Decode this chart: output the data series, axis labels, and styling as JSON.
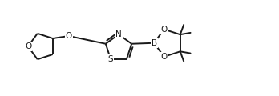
{
  "bg_color": "#ffffff",
  "line_color": "#1a1a1a",
  "line_width": 1.4,
  "font_size": 7.5,
  "atom_bg": "#ffffff",
  "figsize": [
    3.48,
    1.2
  ],
  "dpi": 100,
  "xlim": [
    0,
    348
  ],
  "ylim": [
    0,
    120
  ]
}
